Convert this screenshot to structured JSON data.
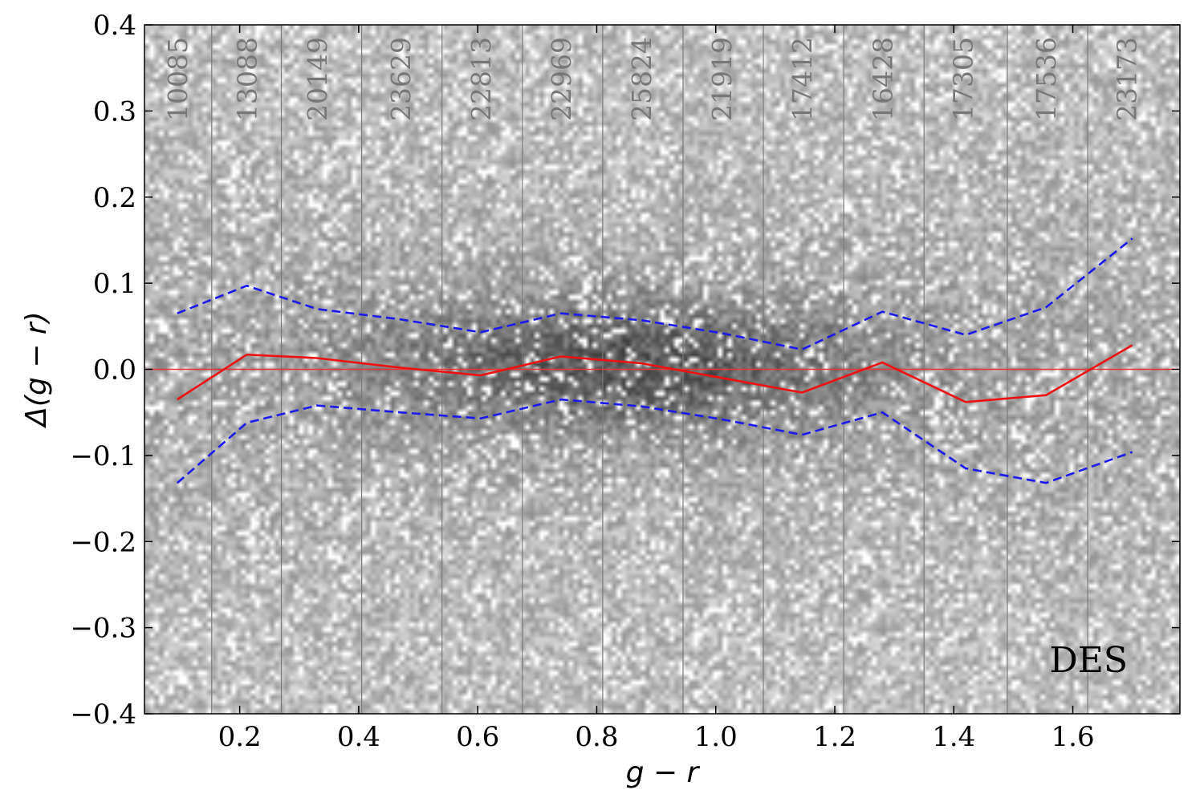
{
  "chart_data": {
    "type": "line",
    "background": "2D density histogram (grayscale)",
    "xlabel": "g − r",
    "ylabel": "Δ(g − r)",
    "xlim": [
      0.04,
      1.78
    ],
    "ylim": [
      -0.4,
      0.4
    ],
    "xticks": [
      0.2,
      0.4,
      0.6,
      0.8,
      1.0,
      1.2,
      1.4,
      1.6
    ],
    "xtick_labels": [
      "0.2",
      "0.4",
      "0.6",
      "0.8",
      "1.0",
      "1.2",
      "1.4",
      "1.6"
    ],
    "yticks": [
      -0.4,
      -0.3,
      -0.2,
      -0.1,
      0.0,
      0.1,
      0.2,
      0.3,
      0.4
    ],
    "ytick_labels": [
      "−0.4",
      "−0.3",
      "−0.2",
      "−0.1",
      "0.0",
      "0.1",
      "0.2",
      "0.3",
      "0.4"
    ],
    "bin_edges": [
      0.153,
      0.27,
      0.405,
      0.54,
      0.675,
      0.81,
      0.945,
      1.08,
      1.215,
      1.35,
      1.49,
      1.625
    ],
    "bin_counts": [
      "10085",
      "13088",
      "20149",
      "23629",
      "22813",
      "22969",
      "25824",
      "21919",
      "17412",
      "16428",
      "17305",
      "17536",
      "23173"
    ],
    "bin_count_x": [
      0.095,
      0.212,
      0.33,
      0.47,
      0.605,
      0.74,
      0.875,
      1.01,
      1.145,
      1.28,
      1.415,
      1.555,
      1.69
    ],
    "x": [
      0.095,
      0.212,
      0.33,
      0.47,
      0.605,
      0.74,
      0.875,
      1.01,
      1.145,
      1.28,
      1.42,
      1.555,
      1.7
    ],
    "series": [
      {
        "role": "median",
        "style": "solid",
        "color": "#ee1111",
        "values": [
          -0.035,
          0.017,
          0.013,
          0.002,
          -0.007,
          0.015,
          0.007,
          -0.01,
          -0.027,
          0.008,
          -0.038,
          -0.03,
          0.028
        ]
      },
      {
        "role": "upper",
        "style": "dashed",
        "color": "#1a1aee",
        "values": [
          0.065,
          0.097,
          0.07,
          0.058,
          0.043,
          0.065,
          0.057,
          0.042,
          0.023,
          0.067,
          0.04,
          0.072,
          0.152
        ]
      },
      {
        "role": "lower",
        "style": "dashed",
        "color": "#1a1aee",
        "values": [
          -0.132,
          -0.062,
          -0.042,
          -0.05,
          -0.057,
          -0.035,
          -0.043,
          -0.058,
          -0.076,
          -0.05,
          -0.115,
          -0.132,
          -0.096
        ]
      }
    ],
    "reference_line": {
      "y": 0.0,
      "color": "#ee3333"
    },
    "density_peak": {
      "x": 0.85,
      "y": 0.005
    },
    "annotation": "DES",
    "grid": false
  }
}
